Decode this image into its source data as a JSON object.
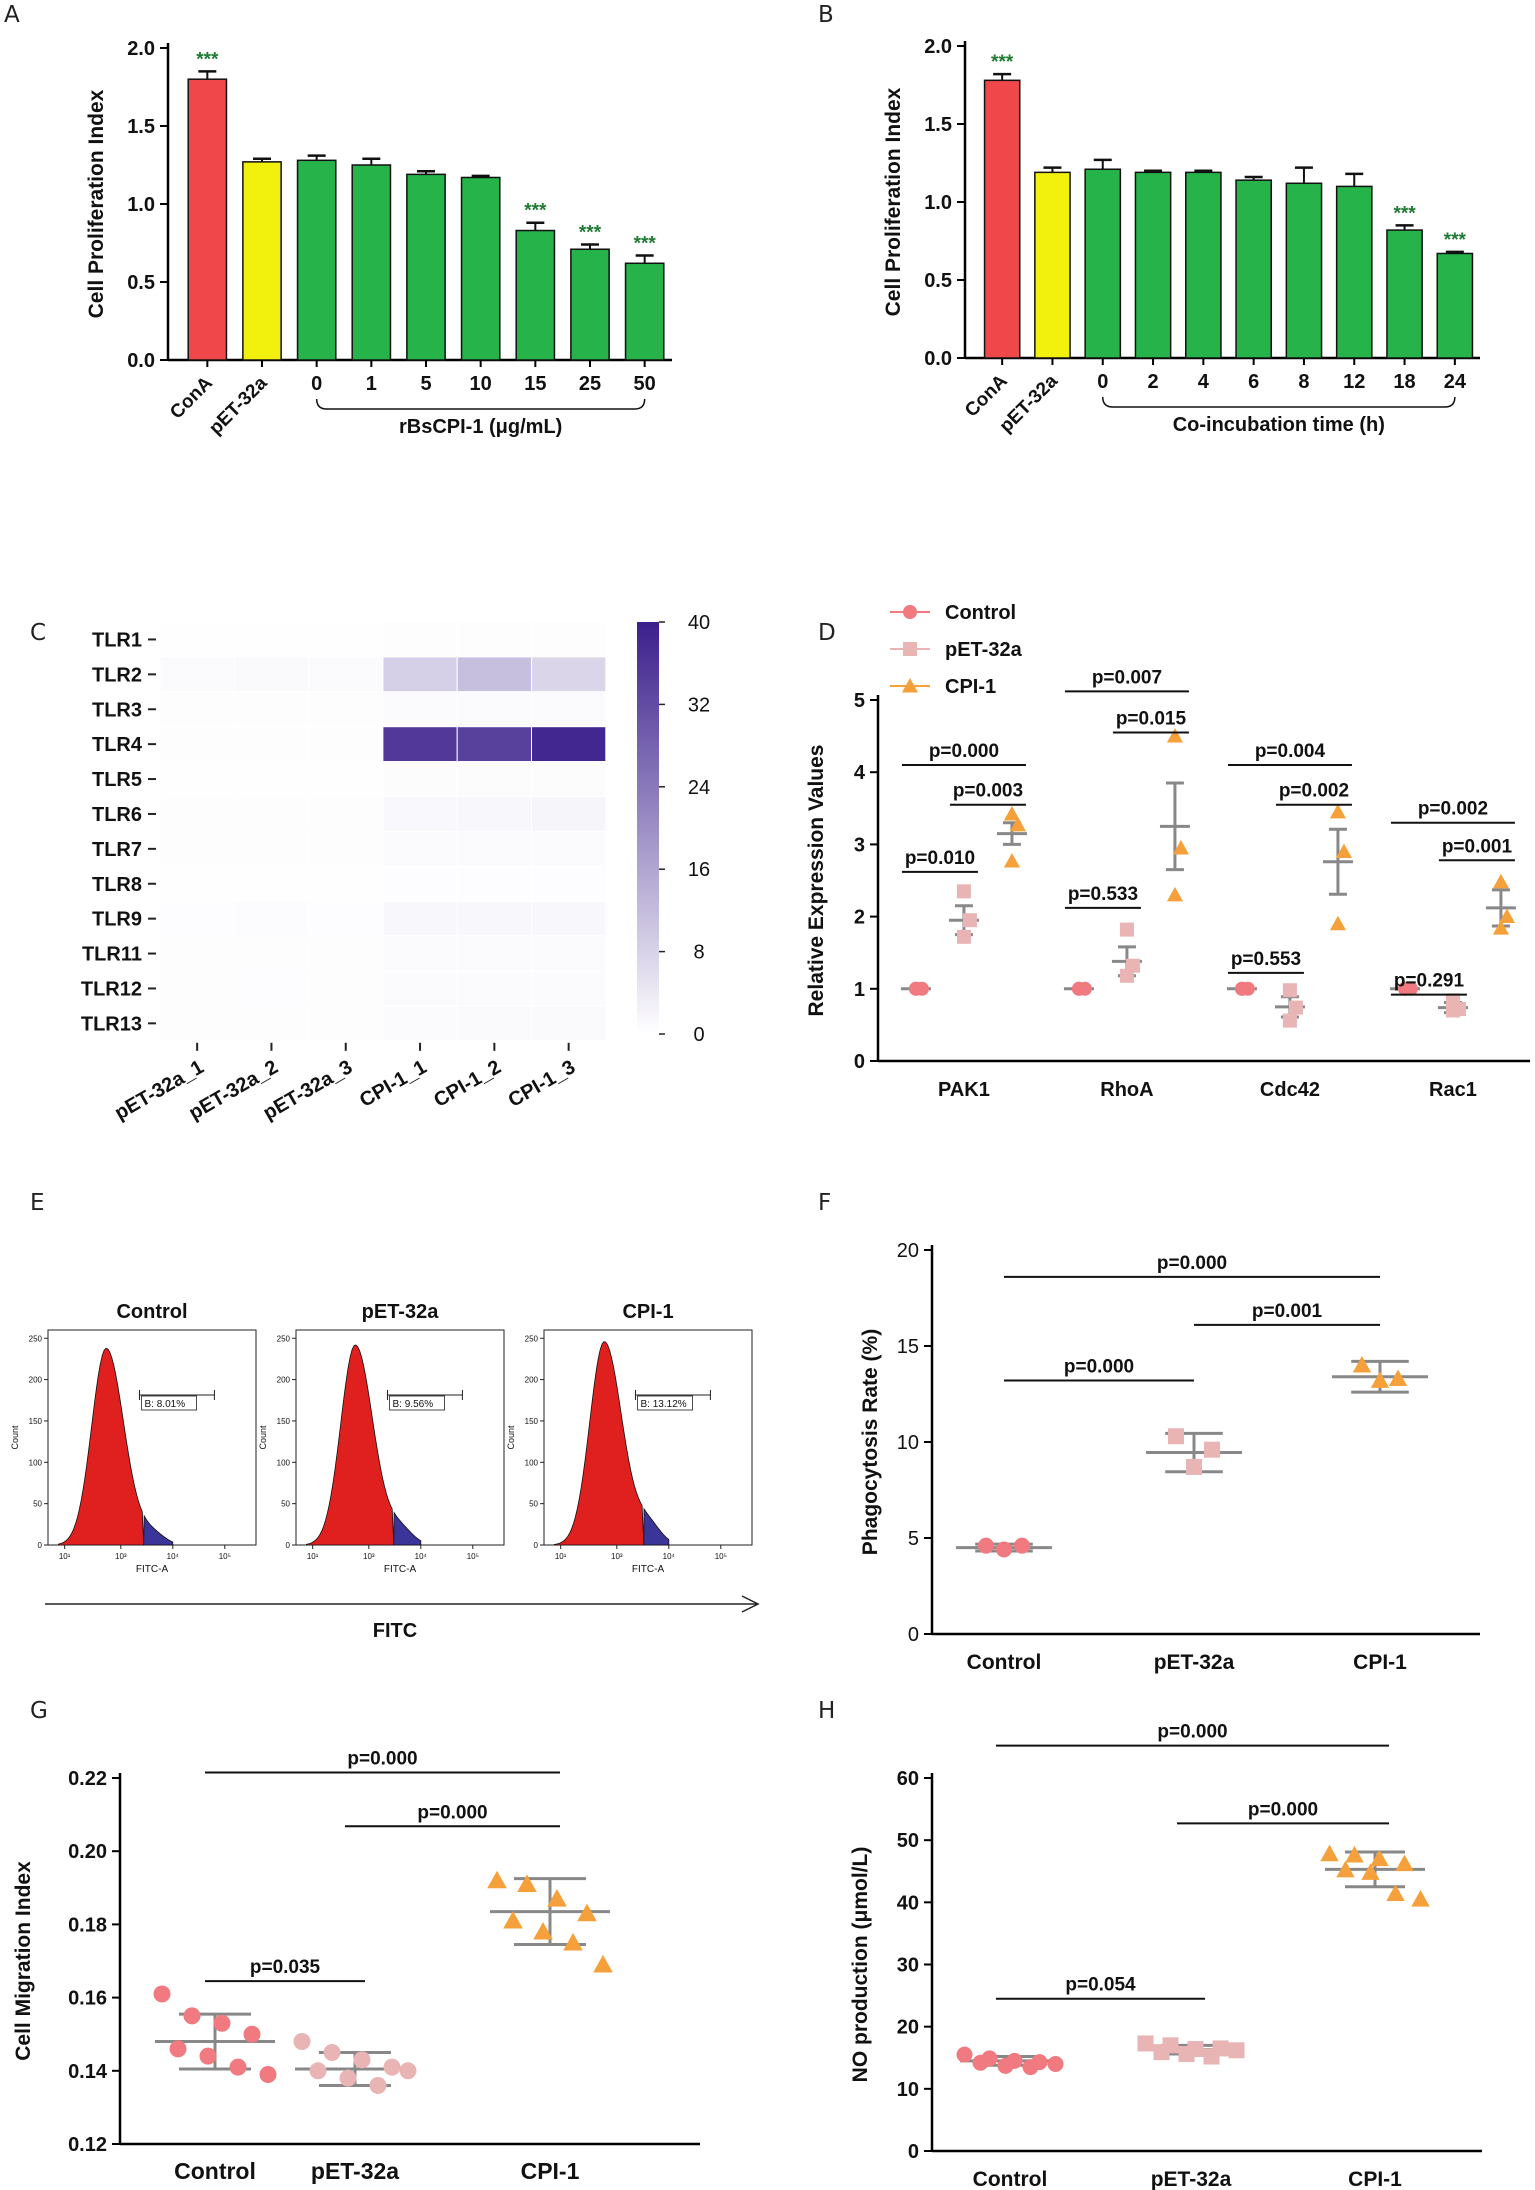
{
  "figure": {
    "panels": [
      "A",
      "B",
      "C",
      "D",
      "E",
      "F",
      "G",
      "H"
    ]
  },
  "chart_data": [
    {
      "panel": "A",
      "type": "bar",
      "ylabel": "Cell Proliferation Index",
      "yticks": [
        "0.0",
        "0.5",
        "1.0",
        "1.5",
        "2.0"
      ],
      "ylim": [
        0,
        2.0
      ],
      "categories": [
        "ConA",
        "pET-32a",
        "0",
        "1",
        "5",
        "10",
        "15",
        "25",
        "50"
      ],
      "values": [
        1.8,
        1.27,
        1.28,
        1.25,
        1.19,
        1.17,
        0.83,
        0.71,
        0.62
      ],
      "errors": [
        0.05,
        0.02,
        0.03,
        0.04,
        0.02,
        0.01,
        0.05,
        0.03,
        0.05
      ],
      "colors": [
        "#f0474a",
        "#f2f10e",
        "#26b34a",
        "#26b34a",
        "#26b34a",
        "#26b34a",
        "#26b34a",
        "#26b34a",
        "#26b34a"
      ],
      "stars": [
        "***",
        "",
        "",
        "",
        "",
        "",
        "***",
        "***",
        "***"
      ],
      "group_label": "rBsCPI-1 (μg/mL)",
      "group_range": [
        2,
        8
      ]
    },
    {
      "panel": "B",
      "type": "bar",
      "ylabel": "Cell Proliferation Index",
      "yticks": [
        "0.0",
        "0.5",
        "1.0",
        "1.5",
        "2.0"
      ],
      "ylim": [
        0,
        2.0
      ],
      "categories": [
        "ConA",
        "pET-32a",
        "0",
        "2",
        "4",
        "6",
        "8",
        "12",
        "18",
        "24"
      ],
      "values": [
        1.78,
        1.19,
        1.21,
        1.19,
        1.19,
        1.14,
        1.12,
        1.1,
        0.82,
        0.67
      ],
      "errors": [
        0.04,
        0.03,
        0.06,
        0.01,
        0.01,
        0.02,
        0.1,
        0.08,
        0.03,
        0.01
      ],
      "colors": [
        "#f0474a",
        "#f2f10e",
        "#26b34a",
        "#26b34a",
        "#26b34a",
        "#26b34a",
        "#26b34a",
        "#26b34a",
        "#26b34a",
        "#26b34a"
      ],
      "stars": [
        "***",
        "",
        "",
        "",
        "",
        "",
        "",
        "",
        "***",
        "***"
      ],
      "group_label": "Co-incubation time (h)",
      "group_range": [
        2,
        9
      ]
    },
    {
      "panel": "C",
      "type": "heatmap",
      "rows": [
        "TLR1",
        "TLR2",
        "TLR3",
        "TLR4",
        "TLR5",
        "TLR6",
        "TLR7",
        "TLR8",
        "TLR9",
        "TLR11",
        "TLR12",
        "TLR13"
      ],
      "columns": [
        "pET-32a_1",
        "pET-32a_2",
        "pET-32a_3",
        "CPI-1_1",
        "CPI-1_2",
        "CPI-1_3"
      ],
      "values": [
        [
          0.2,
          0.2,
          0.2,
          0.3,
          0.3,
          0.3
        ],
        [
          0.8,
          1.0,
          0.9,
          8.5,
          11.5,
          7.5
        ],
        [
          0.3,
          0.3,
          0.3,
          0.8,
          0.8,
          0.8
        ],
        [
          0.3,
          0.3,
          0.3,
          35.5,
          34.0,
          38.5
        ],
        [
          0.2,
          0.2,
          0.2,
          0.6,
          0.6,
          0.6
        ],
        [
          0.3,
          0.3,
          0.3,
          1.2,
          1.4,
          1.8
        ],
        [
          0.3,
          0.3,
          0.3,
          0.9,
          0.9,
          0.9
        ],
        [
          0.2,
          0.2,
          0.2,
          0.5,
          0.5,
          0.5
        ],
        [
          0.5,
          0.7,
          0.5,
          1.5,
          1.4,
          1.4
        ],
        [
          0.4,
          0.4,
          0.4,
          0.8,
          0.8,
          0.8
        ],
        [
          0.4,
          0.5,
          0.4,
          0.8,
          0.8,
          0.8
        ],
        [
          0.3,
          0.3,
          0.3,
          0.9,
          1.0,
          1.0
        ]
      ],
      "colorbar_ticks": [
        "0",
        "8",
        "16",
        "24",
        "32",
        "40"
      ],
      "range": [
        0,
        40
      ],
      "color_low": "#ffffff",
      "color_high": "#3b1f8c"
    },
    {
      "panel": "D",
      "type": "scatter",
      "ylabel": "Relative Expression Values",
      "yticks": [
        "0",
        "1",
        "2",
        "3",
        "4",
        "5"
      ],
      "ylim": [
        0,
        5
      ],
      "legend": [
        "Control",
        "pET-32a",
        "CPI-1"
      ],
      "legend_colors": [
        "#f07a7f",
        "#e8b4b4",
        "#f5a03a"
      ],
      "categories": [
        "PAK1",
        "RhoA",
        "Cdc42",
        "Rac1"
      ],
      "series": [
        {
          "name": "Control",
          "points": [
            [
              1.0,
              1.0,
              1.0
            ],
            [
              1.0,
              1.0,
              1.0
            ],
            [
              1.0,
              1.0,
              1.0
            ],
            [
              1.0,
              1.0,
              1.0
            ]
          ],
          "mean": [
            1.0,
            1.0,
            1.0,
            1.0
          ],
          "sd": [
            0,
            0,
            0,
            0
          ]
        },
        {
          "name": "pET-32a",
          "points": [
            [
              2.35,
              1.95,
              1.72
            ],
            [
              1.82,
              1.32,
              1.18
            ],
            [
              0.98,
              0.74,
              0.56
            ],
            [
              0.84,
              0.72,
              0.7
            ]
          ],
          "mean": [
            1.95,
            1.38,
            0.75,
            0.74
          ],
          "sd": [
            0.2,
            0.2,
            0.14,
            0.07
          ]
        },
        {
          "name": "CPI-1",
          "points": [
            [
              3.42,
              3.27,
              2.77
            ],
            [
              4.5,
              2.95,
              2.3
            ],
            [
              3.45,
              2.9,
              1.9
            ],
            [
              2.48,
              2.0,
              1.84
            ]
          ],
          "mean": [
            3.15,
            3.25,
            2.76,
            2.12
          ],
          "sd": [
            0.15,
            0.6,
            0.45,
            0.25
          ]
        }
      ],
      "annotations": [
        {
          "label": "p=0.000",
          "cat": 0,
          "from": 0,
          "to": 2,
          "y": 4.1
        },
        {
          "label": "p=0.003",
          "cat": 0,
          "from": 1,
          "to": 2,
          "y": 3.55
        },
        {
          "label": "p=0.010",
          "cat": 0,
          "from": 0,
          "to": 1,
          "y": 2.62
        },
        {
          "label": "p=0.007",
          "cat": 1,
          "from": 0,
          "to": 2,
          "y": 5.12
        },
        {
          "label": "p=0.015",
          "cat": 1,
          "from": 1,
          "to": 2,
          "y": 4.55
        },
        {
          "label": "p=0.533",
          "cat": 1,
          "from": 0,
          "to": 1,
          "y": 2.12
        },
        {
          "label": "p=0.004",
          "cat": 2,
          "from": 0,
          "to": 2,
          "y": 4.1
        },
        {
          "label": "p=0.002",
          "cat": 2,
          "from": 1,
          "to": 2,
          "y": 3.55
        },
        {
          "label": "p=0.553",
          "cat": 2,
          "from": 0,
          "to": 1,
          "y": 1.22
        },
        {
          "label": "p=0.002",
          "cat": 3,
          "from": 0,
          "to": 2,
          "y": 3.3
        },
        {
          "label": "p=0.001",
          "cat": 3,
          "from": 1,
          "to": 2,
          "y": 2.78
        },
        {
          "label": "p=0.291",
          "cat": 3,
          "from": 0,
          "to": 1,
          "y": 0.92
        }
      ]
    },
    {
      "panel": "E",
      "type": "histogram",
      "xlabel": "FITC",
      "axis_xlabel": "FITC-A",
      "axis_ylabel": "Count",
      "yticks": [
        "0",
        "50",
        "100",
        "150",
        "200",
        "250"
      ],
      "xticks": [
        "10¹",
        "10³",
        "10⁴",
        "10⁵"
      ],
      "plots": [
        {
          "title": "Control",
          "gate_label": "B: 8.01%",
          "positive_pct": 8.01
        },
        {
          "title": "pET-32a",
          "gate_label": "B: 9.56%",
          "positive_pct": 9.56
        },
        {
          "title": "CPI-1",
          "gate_label": "B: 13.12%",
          "positive_pct": 13.12
        }
      ]
    },
    {
      "panel": "F",
      "type": "scatter",
      "ylabel": "Phagocytosis Rate (%)",
      "yticks": [
        "0",
        "5",
        "10",
        "15",
        "20"
      ],
      "ylim": [
        0,
        20
      ],
      "categories": [
        "Control",
        "pET-32a",
        "CPI-1"
      ],
      "markers": [
        "circle",
        "square",
        "triangle"
      ],
      "colors": [
        "#f07a7f",
        "#e8b4b4",
        "#f5a03a"
      ],
      "points": [
        [
          4.6,
          4.4,
          4.6
        ],
        [
          10.3,
          8.7,
          9.6
        ],
        [
          14.0,
          13.2,
          13.3
        ]
      ],
      "mean": [
        4.5,
        9.45,
        13.4
      ],
      "sd": [
        0.18,
        1.0,
        0.8
      ],
      "annotations": [
        {
          "label": "p=0.000",
          "from": 0,
          "to": 2,
          "y": 18.6
        },
        {
          "label": "p=0.001",
          "from": 1,
          "to": 2,
          "y": 16.1
        },
        {
          "label": "p=0.000",
          "from": 0,
          "to": 1,
          "y": 13.2
        }
      ]
    },
    {
      "panel": "G",
      "type": "scatter",
      "ylabel": "Cell Migration Index",
      "yticks": [
        "0.12",
        "0.14",
        "0.16",
        "0.18",
        "0.20",
        "0.22"
      ],
      "ylim": [
        0.12,
        0.22
      ],
      "categories": [
        "Control",
        "pET-32a",
        "CPI-1"
      ],
      "markers": [
        "circle",
        "circle",
        "triangle"
      ],
      "colors": [
        "#f07a7f",
        "#e8b4b4",
        "#f5a03a"
      ],
      "points": [
        [
          0.161,
          0.155,
          0.153,
          0.15,
          0.146,
          0.144,
          0.141,
          0.139
        ],
        [
          0.148,
          0.145,
          0.143,
          0.141,
          0.14,
          0.138,
          0.136,
          0.14
        ],
        [
          0.192,
          0.191,
          0.187,
          0.183,
          0.181,
          0.178,
          0.175,
          0.169
        ]
      ],
      "mean": [
        0.148,
        0.1405,
        0.1835
      ],
      "sd": [
        0.0075,
        0.0045,
        0.009
      ],
      "annotations": [
        {
          "label": "p=0.000",
          "from": 0,
          "to": 2,
          "y": 0.2215
        },
        {
          "label": "p=0.000",
          "from": 1,
          "to": 2,
          "y": 0.2068
        },
        {
          "label": "p=0.035",
          "from": 0,
          "to": 1,
          "y": 0.1645
        }
      ]
    },
    {
      "panel": "H",
      "type": "scatter",
      "ylabel": "NO production (μmol/L)",
      "yticks": [
        "0",
        "10",
        "20",
        "30",
        "40",
        "50",
        "60"
      ],
      "ylim": [
        0,
        60
      ],
      "categories": [
        "Control",
        "pET-32a",
        "CPI-1"
      ],
      "markers": [
        "circle",
        "square",
        "triangle"
      ],
      "colors": [
        "#f07a7f",
        "#e8b4b4",
        "#f5a03a"
      ],
      "points": [
        [
          15.5,
          14.9,
          14.5,
          14.3,
          14.2,
          13.7,
          13.5,
          14.0
        ],
        [
          17.3,
          17.0,
          16.4,
          16.5,
          15.9,
          15.6,
          15.2,
          16.2
        ],
        [
          47.8,
          47.6,
          47.0,
          46.2,
          45.2,
          44.8,
          41.4,
          40.5
        ]
      ],
      "mean": [
        14.5,
        16.3,
        45.3
      ],
      "sd": [
        0.7,
        0.7,
        2.8
      ],
      "annotations": [
        {
          "label": "p=0.000",
          "from": 0,
          "to": 2,
          "y": 65.2
        },
        {
          "label": "p=0.000",
          "from": 1,
          "to": 2,
          "y": 52.7
        },
        {
          "label": "p=0.054",
          "from": 0,
          "to": 1,
          "y": 24.5
        }
      ]
    }
  ]
}
